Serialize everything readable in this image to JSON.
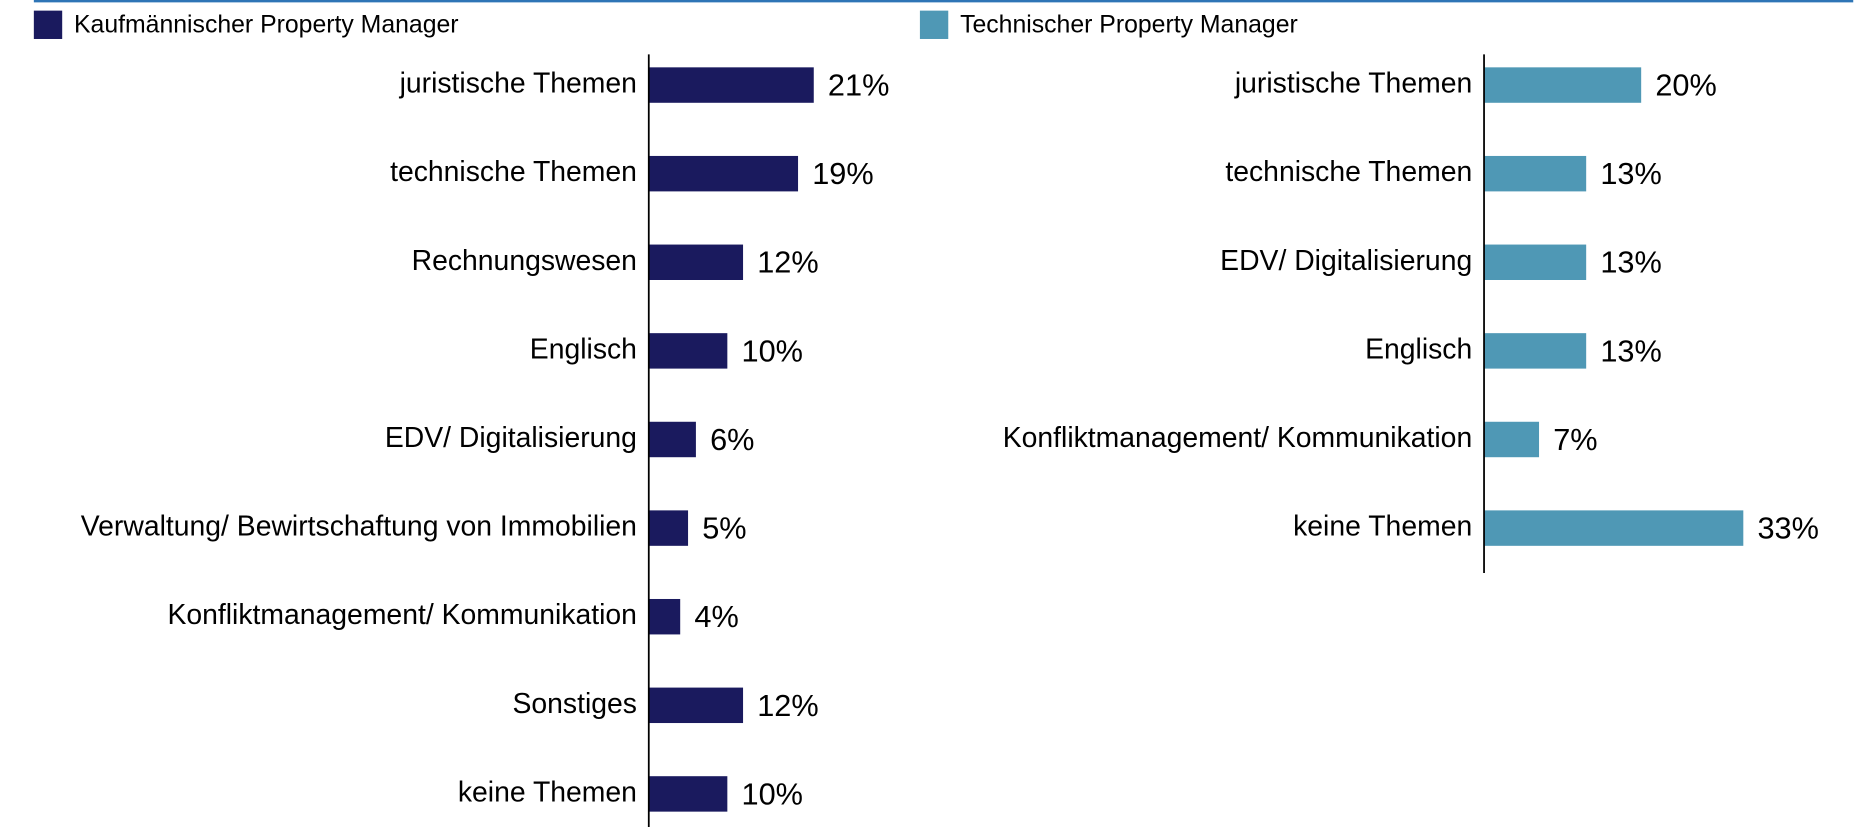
{
  "chart_data": [
    {
      "type": "bar",
      "categories": [
        "juristische Themen",
        "technische Themen",
        "Rechnungswesen",
        "Englisch",
        "EDV/ Digitalisierung",
        "Verwaltung/ Bewirtschaftung von Immobilien",
        "Konfliktmanagement/ Kommunikation",
        "Sonstiges",
        "keine Themen"
      ],
      "series": [
        {
          "name": "Kaufmännischer Property Manager",
          "color": "#1a1a5e",
          "values": [
            21,
            19,
            12,
            10,
            6,
            5,
            4,
            12,
            10
          ],
          "value_labels": [
            "21%",
            "19%",
            "12%",
            "10%",
            "6%",
            "5%",
            "4%",
            "12%",
            "10%"
          ]
        }
      ]
    },
    {
      "type": "bar",
      "categories": [
        "juristische Themen",
        "technische Themen",
        "EDV/ Digitalisierung",
        "Englisch",
        "Konfliktmanagement/ Kommunikation",
        "keine Themen"
      ],
      "series": [
        {
          "name": "Technischer Property Manager",
          "color": "#4f98b5",
          "values": [
            20,
            13,
            13,
            13,
            7,
            33
          ],
          "value_labels": [
            "20%",
            "13%",
            "13%",
            "13%",
            "7%",
            "33%"
          ]
        }
      ]
    }
  ]
}
